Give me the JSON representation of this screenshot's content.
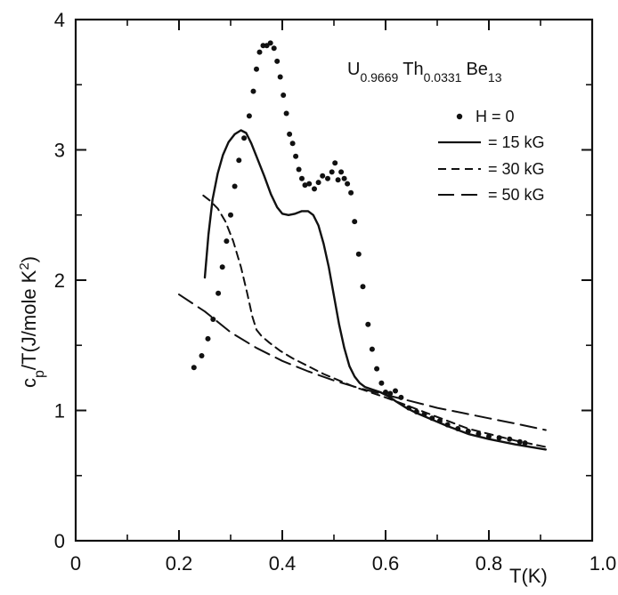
{
  "chart_data": {
    "type": "line",
    "title": "",
    "annotation": {
      "base1": "U",
      "sub1": "0.9669",
      "base2": "Th",
      "sub2": "0.0331",
      "base3": "Be",
      "sub3": "13"
    },
    "xlabel": "T(K)",
    "ylabel": {
      "pre": "c",
      "sub": "p",
      "mid": "/T(J/mole K",
      "sup": "2",
      "post": ")"
    },
    "xlim": [
      0,
      1.0
    ],
    "ylim": [
      0,
      4
    ],
    "x_ticks": [
      "0",
      "0.2",
      "0.4",
      "0.6",
      "0.8",
      "1.0"
    ],
    "x_tick_values": [
      0,
      0.2,
      0.4,
      0.6,
      0.8,
      1.0
    ],
    "y_ticks": [
      "0",
      "1",
      "2",
      "3",
      "4"
    ],
    "y_tick_values": [
      0,
      1,
      2,
      3,
      4
    ],
    "grid": false,
    "legend_position": "top-right",
    "series": [
      {
        "name": "H = 0",
        "style": "dots",
        "points": [
          [
            0.229,
            1.33
          ],
          [
            0.244,
            1.42
          ],
          [
            0.256,
            1.55
          ],
          [
            0.266,
            1.7
          ],
          [
            0.276,
            1.9
          ],
          [
            0.284,
            2.1
          ],
          [
            0.292,
            2.3
          ],
          [
            0.3,
            2.5
          ],
          [
            0.308,
            2.72
          ],
          [
            0.316,
            2.92
          ],
          [
            0.326,
            3.09
          ],
          [
            0.336,
            3.26
          ],
          [
            0.344,
            3.45
          ],
          [
            0.35,
            3.62
          ],
          [
            0.356,
            3.75
          ],
          [
            0.363,
            3.8
          ],
          [
            0.37,
            3.8
          ],
          [
            0.377,
            3.82
          ],
          [
            0.384,
            3.78
          ],
          [
            0.39,
            3.68
          ],
          [
            0.396,
            3.56
          ],
          [
            0.402,
            3.42
          ],
          [
            0.408,
            3.28
          ],
          [
            0.414,
            3.12
          ],
          [
            0.42,
            3.05
          ],
          [
            0.426,
            2.95
          ],
          [
            0.432,
            2.85
          ],
          [
            0.438,
            2.78
          ],
          [
            0.444,
            2.73
          ],
          [
            0.452,
            2.74
          ],
          [
            0.462,
            2.7
          ],
          [
            0.47,
            2.75
          ],
          [
            0.478,
            2.8
          ],
          [
            0.488,
            2.78
          ],
          [
            0.496,
            2.83
          ],
          [
            0.502,
            2.9
          ],
          [
            0.508,
            2.77
          ],
          [
            0.514,
            2.83
          ],
          [
            0.52,
            2.78
          ],
          [
            0.526,
            2.74
          ],
          [
            0.533,
            2.67
          ],
          [
            0.54,
            2.45
          ],
          [
            0.548,
            2.2
          ],
          [
            0.556,
            1.95
          ],
          [
            0.566,
            1.66
          ],
          [
            0.574,
            1.47
          ],
          [
            0.583,
            1.32
          ],
          [
            0.592,
            1.21
          ],
          [
            0.6,
            1.14
          ],
          [
            0.609,
            1.13
          ],
          [
            0.619,
            1.15
          ],
          [
            0.63,
            1.1
          ],
          [
            0.645,
            1.02
          ],
          [
            0.66,
            0.99
          ],
          [
            0.675,
            0.97
          ],
          [
            0.69,
            0.94
          ],
          [
            0.705,
            0.92
          ],
          [
            0.72,
            0.89
          ],
          [
            0.74,
            0.86
          ],
          [
            0.76,
            0.84
          ],
          [
            0.78,
            0.82
          ],
          [
            0.8,
            0.8
          ],
          [
            0.82,
            0.79
          ],
          [
            0.84,
            0.78
          ],
          [
            0.86,
            0.76
          ],
          [
            0.87,
            0.75
          ]
        ]
      },
      {
        "name": "= 15 kG",
        "style": "solid",
        "points": [
          [
            0.25,
            2.02
          ],
          [
            0.257,
            2.35
          ],
          [
            0.265,
            2.62
          ],
          [
            0.275,
            2.82
          ],
          [
            0.285,
            2.96
          ],
          [
            0.296,
            3.06
          ],
          [
            0.308,
            3.12
          ],
          [
            0.32,
            3.15
          ],
          [
            0.33,
            3.13
          ],
          [
            0.34,
            3.05
          ],
          [
            0.352,
            2.93
          ],
          [
            0.365,
            2.8
          ],
          [
            0.378,
            2.66
          ],
          [
            0.39,
            2.56
          ],
          [
            0.4,
            2.51
          ],
          [
            0.412,
            2.5
          ],
          [
            0.425,
            2.51
          ],
          [
            0.438,
            2.53
          ],
          [
            0.45,
            2.53
          ],
          [
            0.46,
            2.5
          ],
          [
            0.47,
            2.42
          ],
          [
            0.48,
            2.28
          ],
          [
            0.49,
            2.1
          ],
          [
            0.5,
            1.88
          ],
          [
            0.51,
            1.66
          ],
          [
            0.52,
            1.48
          ],
          [
            0.53,
            1.34
          ],
          [
            0.54,
            1.26
          ],
          [
            0.55,
            1.21
          ],
          [
            0.56,
            1.18
          ],
          [
            0.575,
            1.16
          ],
          [
            0.59,
            1.14
          ],
          [
            0.605,
            1.11
          ],
          [
            0.62,
            1.07
          ],
          [
            0.64,
            1.02
          ],
          [
            0.66,
            0.98
          ],
          [
            0.69,
            0.93
          ],
          [
            0.72,
            0.88
          ],
          [
            0.76,
            0.82
          ],
          [
            0.8,
            0.78
          ],
          [
            0.85,
            0.74
          ],
          [
            0.91,
            0.7
          ]
        ]
      },
      {
        "name": "= 30 kG",
        "style": "dashed",
        "points": [
          [
            0.247,
            2.65
          ],
          [
            0.26,
            2.61
          ],
          [
            0.275,
            2.55
          ],
          [
            0.29,
            2.45
          ],
          [
            0.305,
            2.3
          ],
          [
            0.32,
            2.1
          ],
          [
            0.332,
            1.9
          ],
          [
            0.342,
            1.72
          ],
          [
            0.35,
            1.62
          ],
          [
            0.36,
            1.57
          ],
          [
            0.375,
            1.52
          ],
          [
            0.395,
            1.46
          ],
          [
            0.42,
            1.4
          ],
          [
            0.45,
            1.34
          ],
          [
            0.48,
            1.28
          ],
          [
            0.51,
            1.23
          ],
          [
            0.54,
            1.18
          ],
          [
            0.57,
            1.14
          ],
          [
            0.6,
            1.1
          ],
          [
            0.64,
            1.04
          ],
          [
            0.68,
            0.98
          ],
          [
            0.72,
            0.92
          ],
          [
            0.76,
            0.86
          ],
          [
            0.8,
            0.82
          ],
          [
            0.85,
            0.77
          ],
          [
            0.91,
            0.72
          ]
        ]
      },
      {
        "name": "= 50 kG",
        "style": "longdash",
        "points": [
          [
            0.2,
            1.89
          ],
          [
            0.25,
            1.76
          ],
          [
            0.3,
            1.6
          ],
          [
            0.35,
            1.48
          ],
          [
            0.4,
            1.38
          ],
          [
            0.45,
            1.3
          ],
          [
            0.5,
            1.23
          ],
          [
            0.55,
            1.17
          ],
          [
            0.6,
            1.12
          ],
          [
            0.65,
            1.07
          ],
          [
            0.7,
            1.02
          ],
          [
            0.75,
            0.98
          ],
          [
            0.8,
            0.94
          ],
          [
            0.85,
            0.9
          ],
          [
            0.91,
            0.85
          ]
        ]
      }
    ]
  }
}
